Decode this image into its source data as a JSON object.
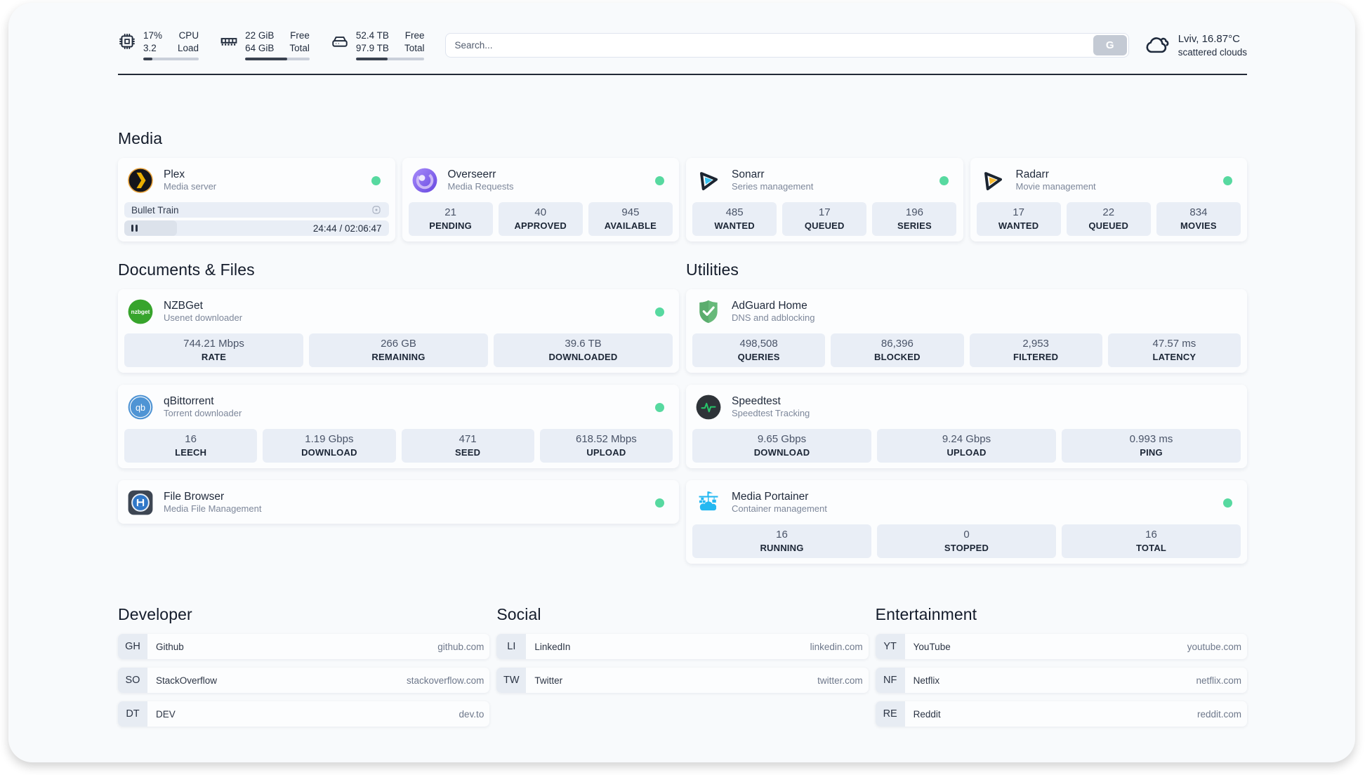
{
  "header": {
    "stats": [
      {
        "id": "cpu",
        "icon": "cpu-chip-icon",
        "row1_value": "17%",
        "row1_label": "CPU",
        "row2_value": "3.2",
        "row2_label": "Load",
        "progress_pct": 17
      },
      {
        "id": "memory",
        "icon": "ram-icon",
        "row1_value": "22 GiB",
        "row1_label": "Free",
        "row2_value": "64 GiB",
        "row2_label": "Total",
        "progress_pct": 65
      },
      {
        "id": "storage",
        "icon": "disk-icon",
        "row1_value": "52.4 TB",
        "row1_label": "Free",
        "row2_value": "97.9 TB",
        "row2_label": "Total",
        "progress_pct": 46
      }
    ],
    "search": {
      "placeholder": "Search...",
      "button": "G"
    },
    "weather": {
      "icon": "cloud-icon",
      "title": "Lviv, 16.87°C",
      "subtitle": "scattered clouds"
    }
  },
  "sections": {
    "media": {
      "title": "Media",
      "plex": {
        "title": "Plex",
        "subtitle": "Media server",
        "online": true,
        "now_playing": "Bullet Train",
        "time": "24:44 / 02:06:47",
        "progress_pct": 20
      },
      "overseerr": {
        "title": "Overseerr",
        "subtitle": "Media Requests",
        "online": true,
        "stats": [
          {
            "value": "21",
            "label": "PENDING"
          },
          {
            "value": "40",
            "label": "APPROVED"
          },
          {
            "value": "945",
            "label": "AVAILABLE"
          }
        ]
      },
      "sonarr": {
        "title": "Sonarr",
        "subtitle": "Series management",
        "online": true,
        "stats": [
          {
            "value": "485",
            "label": "WANTED"
          },
          {
            "value": "17",
            "label": "QUEUED"
          },
          {
            "value": "196",
            "label": "SERIES"
          }
        ]
      },
      "radarr": {
        "title": "Radarr",
        "subtitle": "Movie management",
        "online": true,
        "stats": [
          {
            "value": "17",
            "label": "WANTED"
          },
          {
            "value": "22",
            "label": "QUEUED"
          },
          {
            "value": "834",
            "label": "MOVIES"
          }
        ]
      }
    },
    "documents": {
      "title": "Documents & Files",
      "nzbget": {
        "title": "NZBGet",
        "subtitle": "Usenet downloader",
        "online": true,
        "stats": [
          {
            "value": "744.21 Mbps",
            "label": "RATE"
          },
          {
            "value": "266 GB",
            "label": "REMAINING"
          },
          {
            "value": "39.6 TB",
            "label": "DOWNLOADED"
          }
        ]
      },
      "qbittorrent": {
        "title": "qBittorrent",
        "subtitle": "Torrent downloader",
        "online": true,
        "stats": [
          {
            "value": "16",
            "label": "LEECH"
          },
          {
            "value": "1.19 Gbps",
            "label": "DOWNLOAD"
          },
          {
            "value": "471",
            "label": "SEED"
          },
          {
            "value": "618.52 Mbps",
            "label": "UPLOAD"
          }
        ]
      },
      "filebrowser": {
        "title": "File Browser",
        "subtitle": "Media File Management",
        "online": true
      }
    },
    "utilities": {
      "title": "Utilities",
      "adguard": {
        "title": "AdGuard Home",
        "subtitle": "DNS and adblocking",
        "stats": [
          {
            "value": "498,508",
            "label": "QUERIES"
          },
          {
            "value": "86,396",
            "label": "BLOCKED"
          },
          {
            "value": "2,953",
            "label": "FILTERED"
          },
          {
            "value": "47.57 ms",
            "label": "LATENCY"
          }
        ]
      },
      "speedtest": {
        "title": "Speedtest",
        "subtitle": "Speedtest Tracking",
        "stats": [
          {
            "value": "9.65 Gbps",
            "label": "DOWNLOAD"
          },
          {
            "value": "9.24 Gbps",
            "label": "UPLOAD"
          },
          {
            "value": "0.993 ms",
            "label": "PING"
          }
        ]
      },
      "portainer": {
        "title": "Media Portainer",
        "subtitle": "Container management",
        "online": true,
        "stats": [
          {
            "value": "16",
            "label": "RUNNING"
          },
          {
            "value": "0",
            "label": "STOPPED"
          },
          {
            "value": "16",
            "label": "TOTAL"
          }
        ]
      }
    },
    "developer": {
      "title": "Developer",
      "links": [
        {
          "abbr": "GH",
          "name": "Github",
          "url": "github.com"
        },
        {
          "abbr": "SO",
          "name": "StackOverflow",
          "url": "stackoverflow.com"
        },
        {
          "abbr": "DT",
          "name": "DEV",
          "url": "dev.to"
        }
      ]
    },
    "social": {
      "title": "Social",
      "links": [
        {
          "abbr": "LI",
          "name": "LinkedIn",
          "url": "linkedin.com"
        },
        {
          "abbr": "TW",
          "name": "Twitter",
          "url": "twitter.com"
        }
      ]
    },
    "entertainment": {
      "title": "Entertainment",
      "links": [
        {
          "abbr": "YT",
          "name": "YouTube",
          "url": "youtube.com"
        },
        {
          "abbr": "NF",
          "name": "Netflix",
          "url": "netflix.com"
        },
        {
          "abbr": "RE",
          "name": "Reddit",
          "url": "reddit.com"
        }
      ]
    }
  },
  "colors": {
    "page_bg": "#f8fafc",
    "card_bg": "#fcfdfe",
    "statbox_bg": "#e9eef6",
    "status_online": "#57d9a0",
    "header_bar_fill": "#39414f",
    "plex_gold": "#ebaf00",
    "overseerr_purple": "#7c5cf0",
    "sonarr_cyan": "#36c3f1",
    "radarr_yellow": "#f6b92e",
    "nzbget_green": "#37a42c",
    "qbittorrent_blue": "#4f94d4",
    "adguard_green": "#67b97a",
    "speedtest_pulse": "#27c469",
    "portainer_blue": "#24b8f1"
  }
}
